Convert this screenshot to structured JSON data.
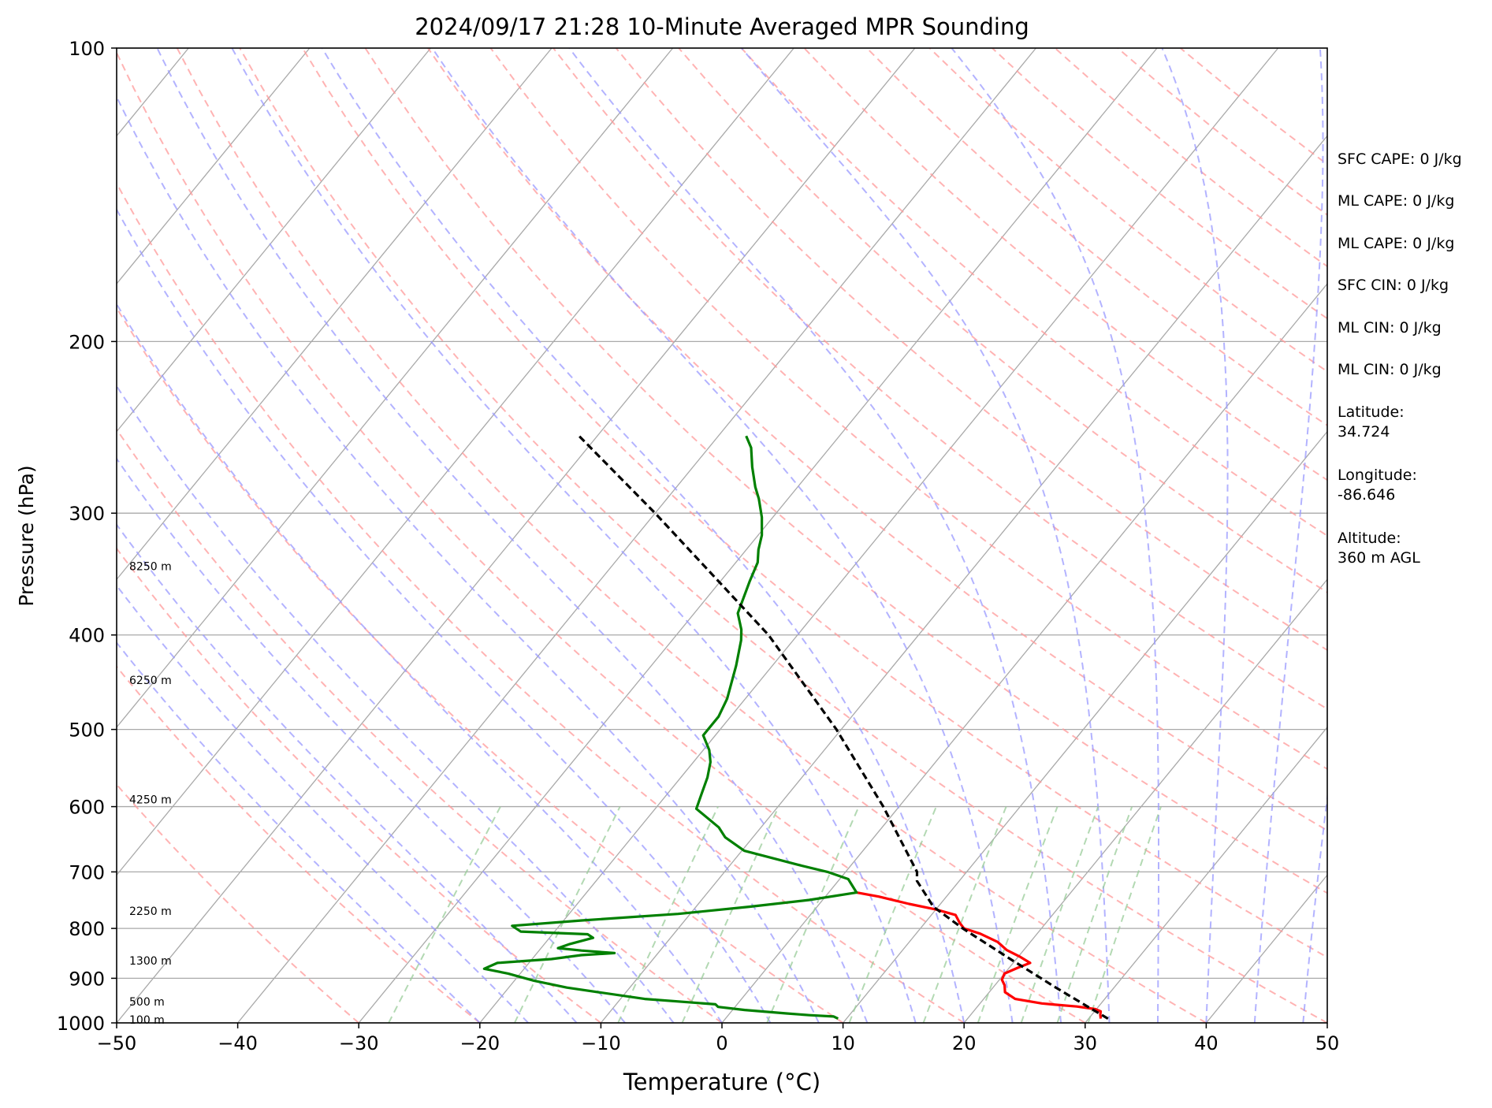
{
  "chart_data": {
    "type": "line",
    "subtype": "skew-t log-p sounding",
    "title": "2024/09/17 21:28 10-Minute Averaged MPR Sounding",
    "xlabel": "Temperature (°C)",
    "ylabel": "Pressure (hPa)",
    "xlim": [
      -50,
      50
    ],
    "ylim": [
      1000,
      100
    ],
    "y_scale": "log",
    "grid": true,
    "x_ticks": [
      "−50",
      "−40",
      "−30",
      "−20",
      "−10",
      "0",
      "10",
      "20",
      "30",
      "40",
      "50"
    ],
    "y_ticks": [
      "100",
      "200",
      "300",
      "400",
      "500",
      "600",
      "700",
      "800",
      "900",
      "1000"
    ],
    "height_labels": [
      {
        "text": "8250 m",
        "p": 340
      },
      {
        "text": "6250 m",
        "p": 445
      },
      {
        "text": "4250 m",
        "p": 590
      },
      {
        "text": "2250 m",
        "p": 768
      },
      {
        "text": "1300 m",
        "p": 863
      },
      {
        "text": "500 m",
        "p": 951
      },
      {
        "text": "100 m",
        "p": 993
      }
    ],
    "series": [
      {
        "role": "temperature",
        "color": "#ff0000",
        "points": [
          {
            "p": 990,
            "t": 31.0
          },
          {
            "p": 981,
            "t": 30.7
          },
          {
            "p": 973,
            "t": 30.5
          },
          {
            "p": 968,
            "t": 29.9
          },
          {
            "p": 962,
            "t": 28.2
          },
          {
            "p": 958,
            "t": 26.3
          },
          {
            "p": 955,
            "t": 25.1
          },
          {
            "p": 945,
            "t": 22.6
          },
          {
            "p": 930,
            "t": 21.3
          },
          {
            "p": 915,
            "t": 20.8
          },
          {
            "p": 903,
            "t": 20.2
          },
          {
            "p": 890,
            "t": 20.0
          },
          {
            "p": 878,
            "t": 20.7
          },
          {
            "p": 868,
            "t": 21.4
          },
          {
            "p": 855,
            "t": 20.1
          },
          {
            "p": 842,
            "t": 18.6
          },
          {
            "p": 826,
            "t": 17.3
          },
          {
            "p": 810,
            "t": 15.3
          },
          {
            "p": 800,
            "t": 13.6
          },
          {
            "p": 790,
            "t": 12.9
          },
          {
            "p": 775,
            "t": 12.0
          },
          {
            "p": 765,
            "t": 10.0
          },
          {
            "p": 755,
            "t": 7.4
          },
          {
            "p": 742,
            "t": 4.4
          },
          {
            "p": 735,
            "t": 2.3
          }
        ]
      },
      {
        "role": "dewpoint",
        "color": "#008000",
        "points": [
          {
            "p": 990,
            "t": 9.3
          },
          {
            "p": 985,
            "t": 8.8
          },
          {
            "p": 982,
            "t": 6.7
          },
          {
            "p": 978,
            "t": 4.7
          },
          {
            "p": 970,
            "t": 1.0
          },
          {
            "p": 963,
            "t": -1.4
          },
          {
            "p": 957,
            "t": -1.8
          },
          {
            "p": 945,
            "t": -8.0
          },
          {
            "p": 920,
            "t": -15.2
          },
          {
            "p": 905,
            "t": -18.4
          },
          {
            "p": 890,
            "t": -21.0
          },
          {
            "p": 880,
            "t": -23.3
          },
          {
            "p": 868,
            "t": -22.6
          },
          {
            "p": 860,
            "t": -18.4
          },
          {
            "p": 852,
            "t": -16.2
          },
          {
            "p": 848,
            "t": -13.6
          },
          {
            "p": 843,
            "t": -16.5
          },
          {
            "p": 838,
            "t": -18.6
          },
          {
            "p": 830,
            "t": -17.9
          },
          {
            "p": 818,
            "t": -16.4
          },
          {
            "p": 811,
            "t": -17.1
          },
          {
            "p": 806,
            "t": -22.8
          },
          {
            "p": 795,
            "t": -23.9
          },
          {
            "p": 785,
            "t": -18.5
          },
          {
            "p": 773,
            "t": -11.0
          },
          {
            "p": 760,
            "t": -5.6
          },
          {
            "p": 748,
            "t": -1.1
          },
          {
            "p": 735,
            "t": 2.3
          },
          {
            "p": 712,
            "t": 0.7
          },
          {
            "p": 700,
            "t": -1.5
          },
          {
            "p": 688,
            "t": -4.5
          },
          {
            "p": 666,
            "t": -9.8
          },
          {
            "p": 645,
            "t": -12.3
          },
          {
            "p": 630,
            "t": -13.5
          },
          {
            "p": 603,
            "t": -16.6
          },
          {
            "p": 585,
            "t": -17.1
          },
          {
            "p": 560,
            "t": -17.8
          },
          {
            "p": 540,
            "t": -18.6
          },
          {
            "p": 525,
            "t": -19.5
          },
          {
            "p": 507,
            "t": -21.0
          },
          {
            "p": 500,
            "t": -21.0
          },
          {
            "p": 485,
            "t": -21.0
          },
          {
            "p": 465,
            "t": -21.5
          },
          {
            "p": 430,
            "t": -23.0
          },
          {
            "p": 405,
            "t": -24.3
          },
          {
            "p": 395,
            "t": -25.0
          },
          {
            "p": 380,
            "t": -26.4
          },
          {
            "p": 352,
            "t": -27.6
          },
          {
            "p": 337,
            "t": -28.2
          },
          {
            "p": 327,
            "t": -29.0
          },
          {
            "p": 316,
            "t": -29.7
          },
          {
            "p": 303,
            "t": -30.9
          },
          {
            "p": 290,
            "t": -32.4
          },
          {
            "p": 282,
            "t": -33.5
          },
          {
            "p": 269,
            "t": -35.1
          },
          {
            "p": 257,
            "t": -36.5
          },
          {
            "p": 250,
            "t": -37.7
          }
        ]
      },
      {
        "role": "parcel",
        "color": "#000000",
        "style": "dashed",
        "points": [
          {
            "p": 990,
            "t": 31.6
          },
          {
            "p": 960,
            "t": 28.9
          },
          {
            "p": 920,
            "t": 25.2
          },
          {
            "p": 860,
            "t": 19.5
          },
          {
            "p": 800,
            "t": 13.5
          },
          {
            "p": 760,
            "t": 9.6
          },
          {
            "p": 715,
            "t": 6.5
          },
          {
            "p": 700,
            "t": 5.9
          },
          {
            "p": 600,
            "t": -1.3
          },
          {
            "p": 500,
            "t": -10.4
          },
          {
            "p": 400,
            "t": -22.4
          },
          {
            "p": 300,
            "t": -40.0
          },
          {
            "p": 250,
            "t": -51.5
          }
        ]
      }
    ],
    "reference_lines": {
      "isotherms_color": "#a9a9a9",
      "dry_adiabats_color": "#ff9999",
      "moist_adiabats_color": "#9999ff",
      "mixing_ratio_color": "#99cc99"
    },
    "side_stats": [
      "SFC CAPE: 0 J/kg",
      "ML CAPE: 0 J/kg",
      "ML CAPE: 0 J/kg",
      "SFC CIN: 0 J/kg",
      "ML CIN: 0 J/kg",
      "ML CIN: 0 J/kg",
      "Latitude:\n34.724",
      "Longitude:\n-86.646",
      "Altitude:\n360 m AGL"
    ]
  }
}
